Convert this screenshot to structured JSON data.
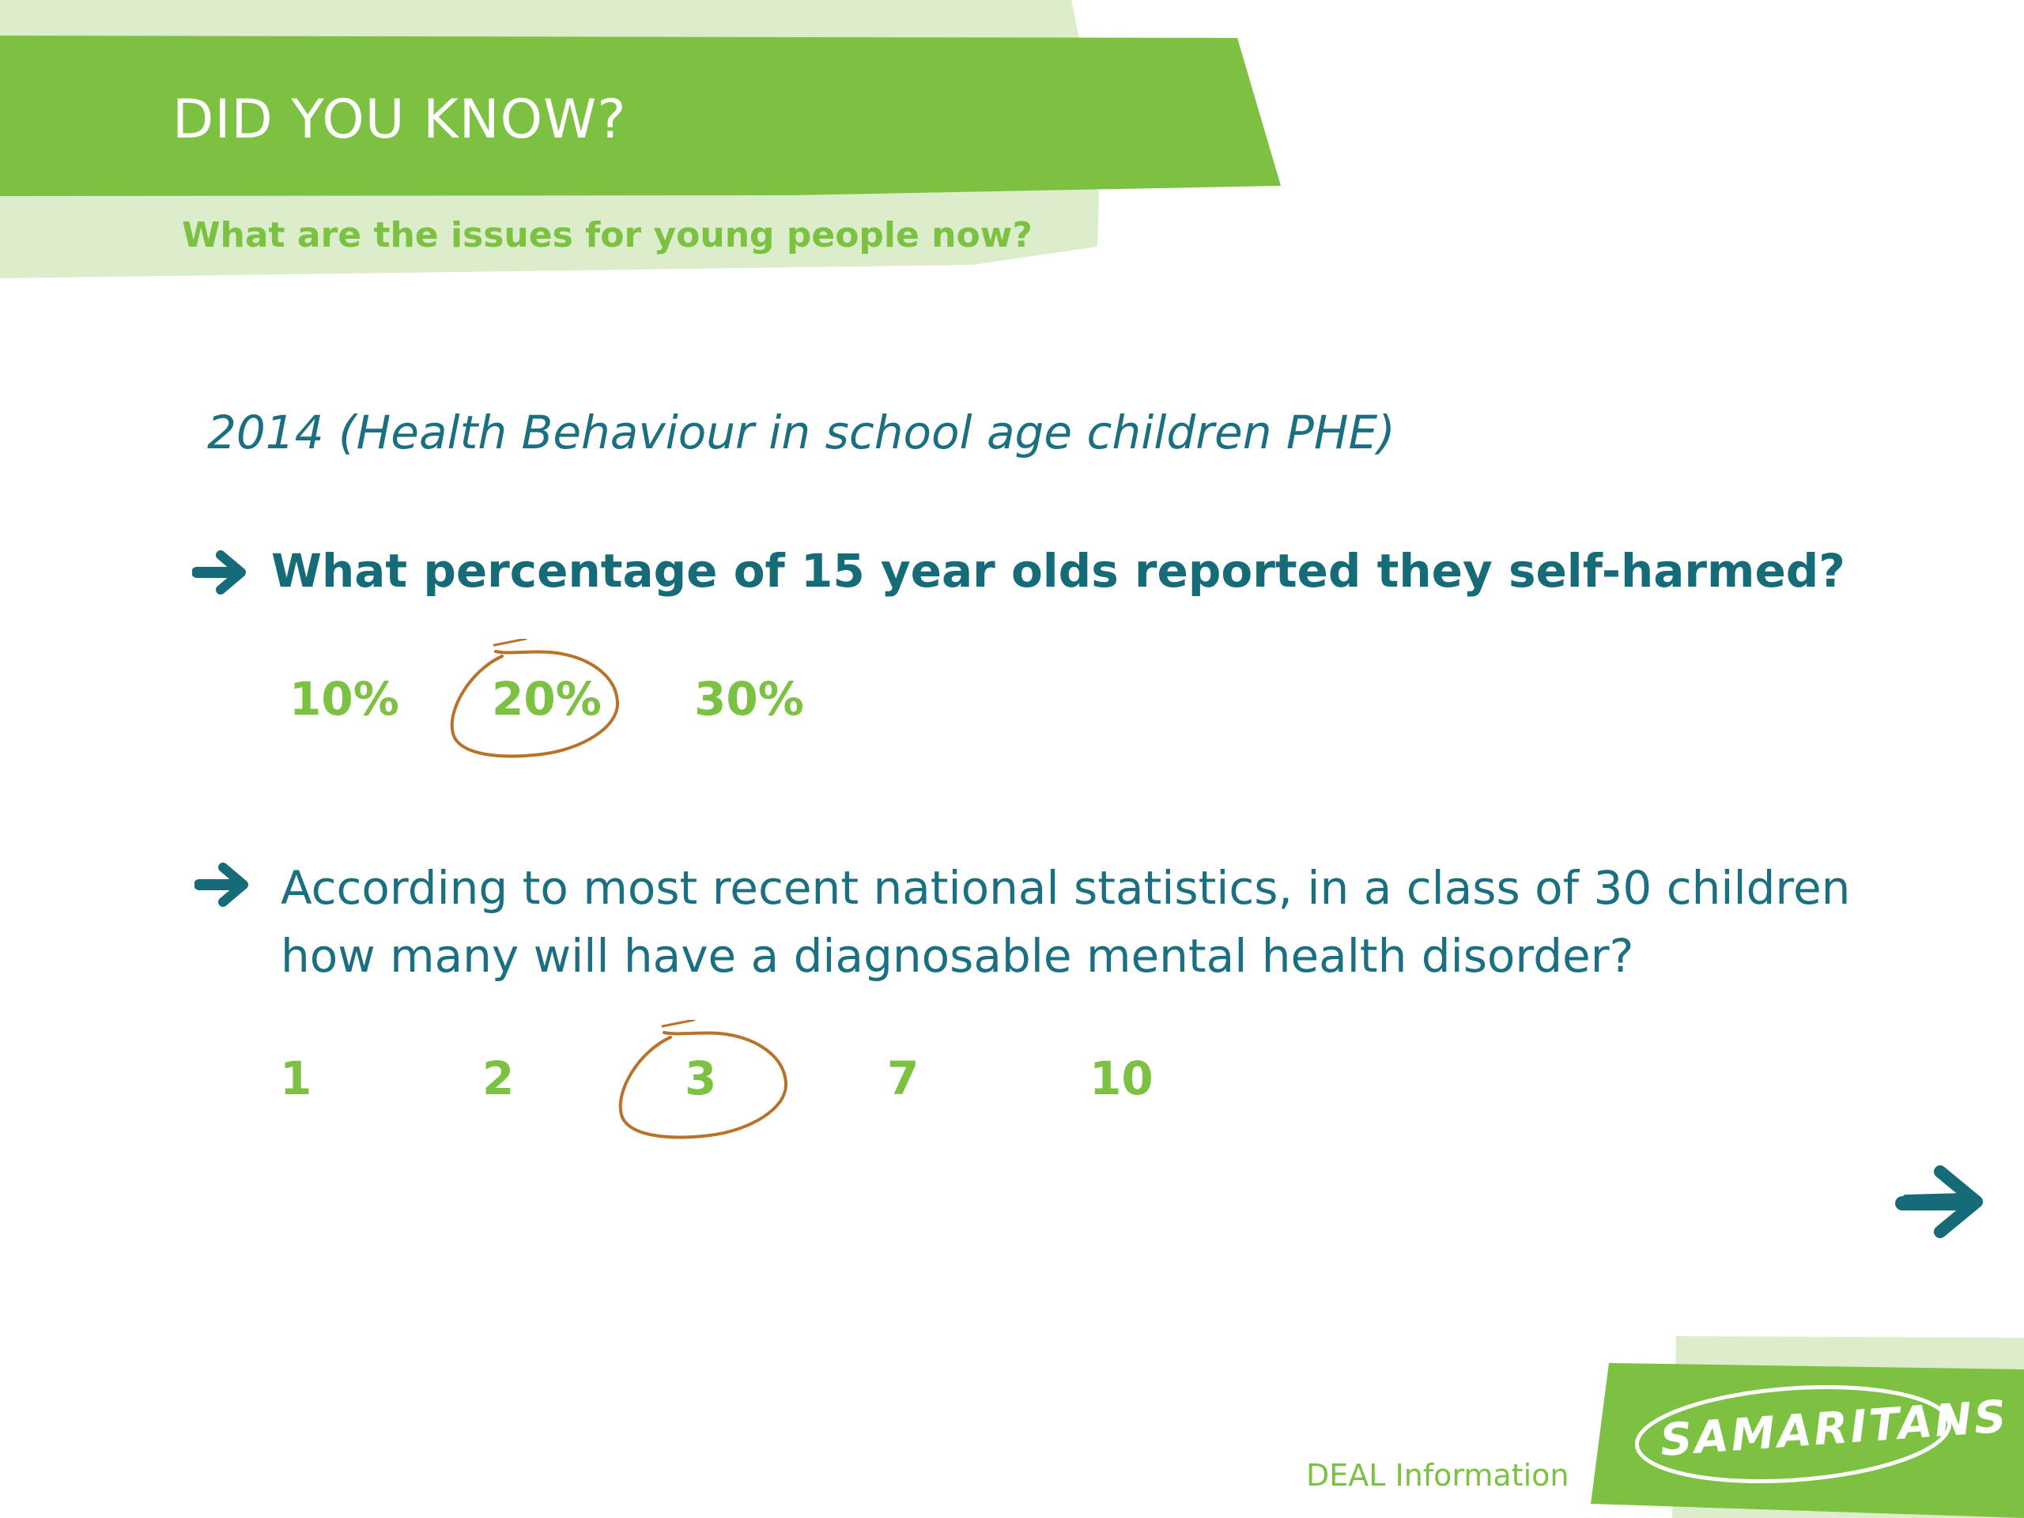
{
  "header": {
    "title": "DID YOU KNOW?",
    "subtitle": "What are the issues for young people now?"
  },
  "source": "2014 (Health Behaviour in school age children PHE)",
  "questions": [
    {
      "text": "What percentage of 15 year olds reported they self-harmed?",
      "options": [
        "10%",
        "20%",
        "30%"
      ],
      "circled": "20%"
    },
    {
      "text": "According to most recent national statistics, in a class of 30 children how many will have a diagnosable mental health disorder?",
      "options": [
        "1",
        "2",
        "3",
        "7",
        "10"
      ],
      "circled": "3"
    }
  ],
  "footer": {
    "label": "DEAL Information",
    "logo": "SAMARITANS"
  },
  "icons": {
    "bullet": "arrow-right-icon",
    "next": "next-arrow-icon"
  },
  "colors": {
    "green": "#7cc142",
    "light_green": "#dcedcc",
    "teal": "#166b79",
    "circle": "#b8732a"
  }
}
